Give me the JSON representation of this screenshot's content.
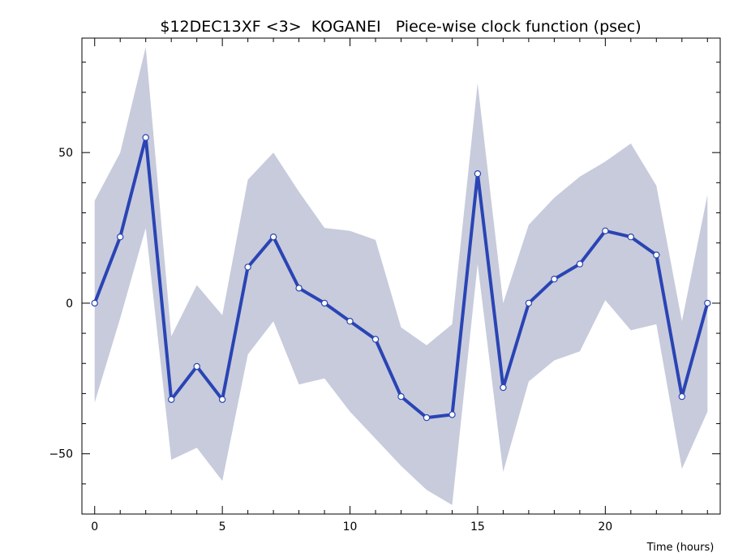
{
  "chart_data": {
    "type": "line",
    "title": "$12DEC13XF <3>  KOGANEI   Piece-wise clock function (psec)",
    "xlabel": "Time (hours)",
    "ylabel": "",
    "xlim": [
      -0.5,
      24.5
    ],
    "ylim": [
      -70,
      88
    ],
    "x_ticks": [
      0,
      5,
      10,
      15,
      20
    ],
    "y_ticks": [
      -50,
      0,
      50
    ],
    "grid": false,
    "colors": {
      "line": "#2a44b4",
      "band": "#c7cbdc",
      "marker_fill": "#ffffff"
    },
    "x": [
      0,
      1,
      2,
      3,
      4,
      5,
      6,
      7,
      8,
      9,
      10,
      11,
      12,
      13,
      14,
      15,
      16,
      17,
      18,
      19,
      20,
      21,
      22,
      23,
      24
    ],
    "series": [
      {
        "values": [
          0,
          22,
          55,
          -32,
          -21,
          -32,
          12,
          22,
          5,
          0,
          -6,
          -12,
          -31,
          -38,
          -37,
          43,
          -28,
          0,
          8,
          13,
          24,
          22,
          16,
          -31,
          0
        ]
      }
    ],
    "band_upper": [
      34,
      50,
      85,
      -11,
      6,
      -4,
      41,
      50,
      37,
      25,
      24,
      21,
      -8,
      -14,
      -7,
      73,
      0,
      26,
      35,
      42,
      47,
      53,
      39,
      -6,
      36
    ],
    "band_lower": [
      -33,
      -5,
      25,
      -52,
      -48,
      -59,
      -17,
      -6,
      -27,
      -25,
      -36,
      -45,
      -54,
      -62,
      -67,
      13,
      -56,
      -26,
      -19,
      -16,
      1,
      -9,
      -7,
      -55,
      -36
    ]
  }
}
